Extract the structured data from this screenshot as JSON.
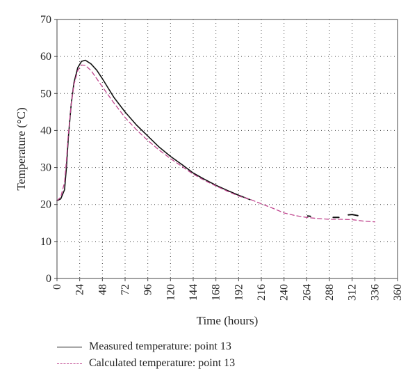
{
  "chart_data": {
    "type": "line",
    "xlabel": "Time (hours)",
    "ylabel": "Temperature (°C)",
    "xlim": [
      0,
      360
    ],
    "ylim": [
      0,
      70
    ],
    "xticks": [
      0,
      24,
      48,
      72,
      96,
      120,
      144,
      168,
      192,
      216,
      240,
      264,
      288,
      312,
      336,
      360
    ],
    "yticks": [
      0,
      10,
      20,
      30,
      40,
      50,
      60,
      70
    ],
    "grid": "dotted",
    "legend_position": "below",
    "series": [
      {
        "name": "Measured temperature: point 13",
        "color": "#111111",
        "style": "solid",
        "points": [
          [
            0,
            21
          ],
          [
            4,
            21.5
          ],
          [
            8,
            24
          ],
          [
            10,
            30
          ],
          [
            12,
            38
          ],
          [
            15,
            47
          ],
          [
            18,
            53
          ],
          [
            22,
            57
          ],
          [
            26,
            58.7
          ],
          [
            30,
            59
          ],
          [
            36,
            58
          ],
          [
            42,
            56.3
          ],
          [
            48,
            54
          ],
          [
            60,
            49
          ],
          [
            72,
            45
          ],
          [
            84,
            41.5
          ],
          [
            96,
            38.5
          ],
          [
            108,
            35.5
          ],
          [
            120,
            33
          ],
          [
            132,
            30.8
          ],
          [
            144,
            28.5
          ],
          [
            156,
            26.8
          ],
          [
            168,
            25.2
          ],
          [
            180,
            23.8
          ],
          [
            192,
            22.5
          ],
          [
            204,
            21.3
          ]
        ],
        "extra_segments": [
          [
            [
              265,
              16.9
            ],
            [
              268,
              16.8
            ]
          ],
          [
            [
              292,
              16.5
            ],
            [
              298,
              16.5
            ]
          ],
          [
            [
              308,
              17.2
            ],
            [
              312,
              17.3
            ],
            [
              318,
              17.0
            ]
          ]
        ]
      },
      {
        "name": "Calculated temperature: point 13",
        "color": "#c0468f",
        "style": "dashed",
        "points": [
          [
            0,
            21
          ],
          [
            4,
            22
          ],
          [
            8,
            26
          ],
          [
            10,
            32
          ],
          [
            12,
            39
          ],
          [
            15,
            47
          ],
          [
            18,
            52.5
          ],
          [
            22,
            56.2
          ],
          [
            26,
            57.7
          ],
          [
            30,
            57.6
          ],
          [
            36,
            56.2
          ],
          [
            42,
            54
          ],
          [
            48,
            51.8
          ],
          [
            60,
            47.5
          ],
          [
            72,
            43.5
          ],
          [
            84,
            40.2
          ],
          [
            96,
            37.3
          ],
          [
            108,
            34.7
          ],
          [
            120,
            32.4
          ],
          [
            132,
            30.3
          ],
          [
            144,
            28.2
          ],
          [
            156,
            26.5
          ],
          [
            168,
            25
          ],
          [
            180,
            23.6
          ],
          [
            192,
            22.3
          ],
          [
            204,
            21.4
          ],
          [
            216,
            20.2
          ],
          [
            228,
            19
          ],
          [
            240,
            17.7
          ],
          [
            252,
            17
          ],
          [
            264,
            16.5
          ],
          [
            276,
            16.2
          ],
          [
            288,
            16
          ],
          [
            300,
            16
          ],
          [
            312,
            15.9
          ],
          [
            324,
            15.5
          ],
          [
            336,
            15.3
          ]
        ]
      }
    ]
  },
  "legend": [
    {
      "label": "Measured temperature: point 13",
      "color": "#111111",
      "style": "solid"
    },
    {
      "label": "Calculated temperature: point 13",
      "color": "#c0468f",
      "style": "dashed"
    }
  ]
}
